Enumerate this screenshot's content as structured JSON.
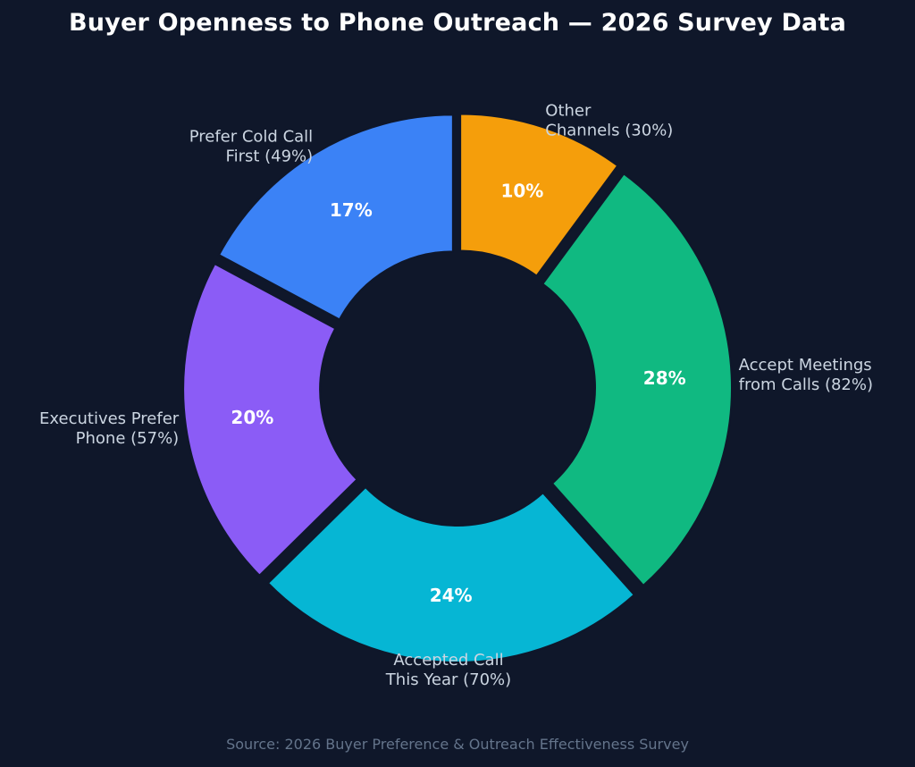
{
  "chart_data": {
    "type": "pie",
    "variant": "donut",
    "title": "Buyer Openness to Phone Outreach — 2026 Survey Data",
    "source": "Source: 2026 Buyer Preference & Outreach Effectiveness Survey",
    "slices": [
      {
        "label_lines": [
          "Other",
          "Channels (30%)"
        ],
        "value": 10,
        "value_label": "10%",
        "color": "#f59e0b"
      },
      {
        "label_lines": [
          "Accept Meetings",
          "from Calls (82%)"
        ],
        "value": 28,
        "value_label": "28%",
        "color": "#10b981"
      },
      {
        "label_lines": [
          "Accepted Call",
          "This Year (70%)"
        ],
        "value": 24,
        "value_label": "24%",
        "color": "#06b6d4"
      },
      {
        "label_lines": [
          "Executives Prefer",
          "Phone (57%)"
        ],
        "value": 20,
        "value_label": "20%",
        "color": "#8b5cf6"
      },
      {
        "label_lines": [
          "Prefer Cold Call",
          "First (49%)"
        ],
        "value": 17,
        "value_label": "17%",
        "color": "#3b82f6"
      }
    ],
    "colors": {
      "background": "#0f172a",
      "category_label": "#cbd5e1",
      "value_label": "#ffffff",
      "source": "#64748b"
    }
  }
}
